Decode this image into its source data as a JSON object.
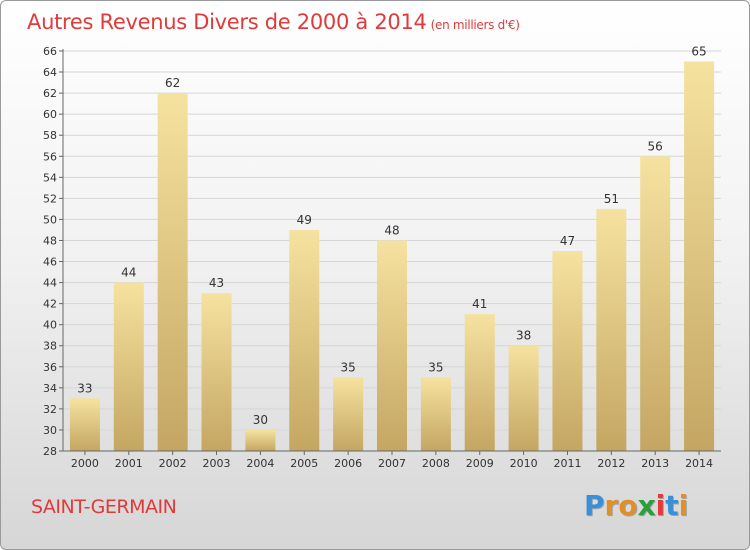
{
  "title": "Autres Revenus Divers de 2000 à 2014",
  "unit_note": "(en milliers d'€)",
  "place": "SAINT-GERMAIN",
  "logo": {
    "letters": [
      "P",
      "r",
      "o",
      "x",
      "i",
      "t",
      "i"
    ],
    "colors": [
      "#3a8fd6",
      "#e0902a",
      "#e0902a",
      "#2a9e3a",
      "#e03a3a",
      "#3a8fd6",
      "#e0902a"
    ]
  },
  "colors": {
    "title": "#e03a3a",
    "bar_light": "#f3dc97",
    "bar_dark": "#c8ab64"
  },
  "chart_data": {
    "type": "bar",
    "categories": [
      "2000",
      "2001",
      "2002",
      "2003",
      "2004",
      "2005",
      "2006",
      "2007",
      "2008",
      "2009",
      "2010",
      "2011",
      "2012",
      "2013",
      "2014"
    ],
    "values": [
      33,
      44,
      62,
      43,
      30,
      49,
      35,
      48,
      35,
      41,
      38,
      47,
      51,
      56,
      65
    ],
    "ylim": [
      28,
      66
    ],
    "yticks": [
      28,
      30,
      32,
      34,
      36,
      38,
      40,
      42,
      44,
      46,
      48,
      50,
      52,
      54,
      56,
      58,
      60,
      62,
      64,
      66
    ],
    "grid": true,
    "legend": "none"
  }
}
